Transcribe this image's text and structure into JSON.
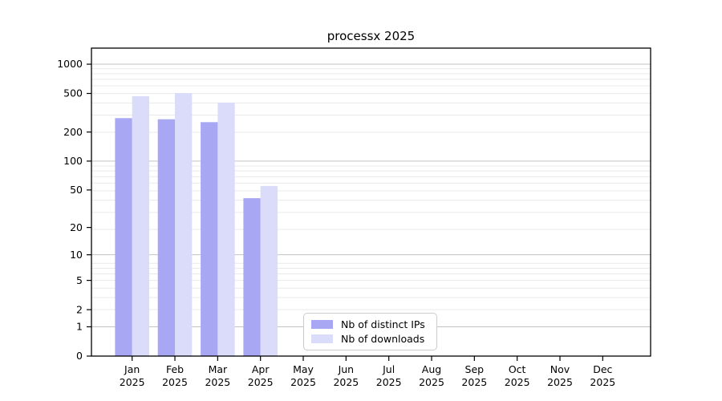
{
  "title": "processx 2025",
  "chart_data": {
    "type": "bar",
    "title": "processx 2025",
    "categories": [
      "Jan",
      "Feb",
      "Mar",
      "Apr",
      "May",
      "Jun",
      "Jul",
      "Aug",
      "Sep",
      "Oct",
      "Nov",
      "Dec"
    ],
    "category_year": "2025",
    "series": [
      {
        "name": "Nb of distinct IPs",
        "color": "#a7a7f4",
        "values": [
          278,
          271,
          253,
          41,
          null,
          null,
          null,
          null,
          null,
          null,
          null,
          null
        ]
      },
      {
        "name": "Nb of downloads",
        "color": "#dbdbfa",
        "values": [
          468,
          505,
          402,
          55,
          null,
          null,
          null,
          null,
          null,
          null,
          null,
          null
        ]
      }
    ],
    "yticks": [
      0,
      1,
      2,
      5,
      10,
      20,
      50,
      100,
      200,
      500,
      1000
    ],
    "y_scale": "log10(1+v)",
    "ylim": [
      0,
      1465
    ],
    "grid": "horizontal major+minor",
    "legend_position": "lower center"
  }
}
